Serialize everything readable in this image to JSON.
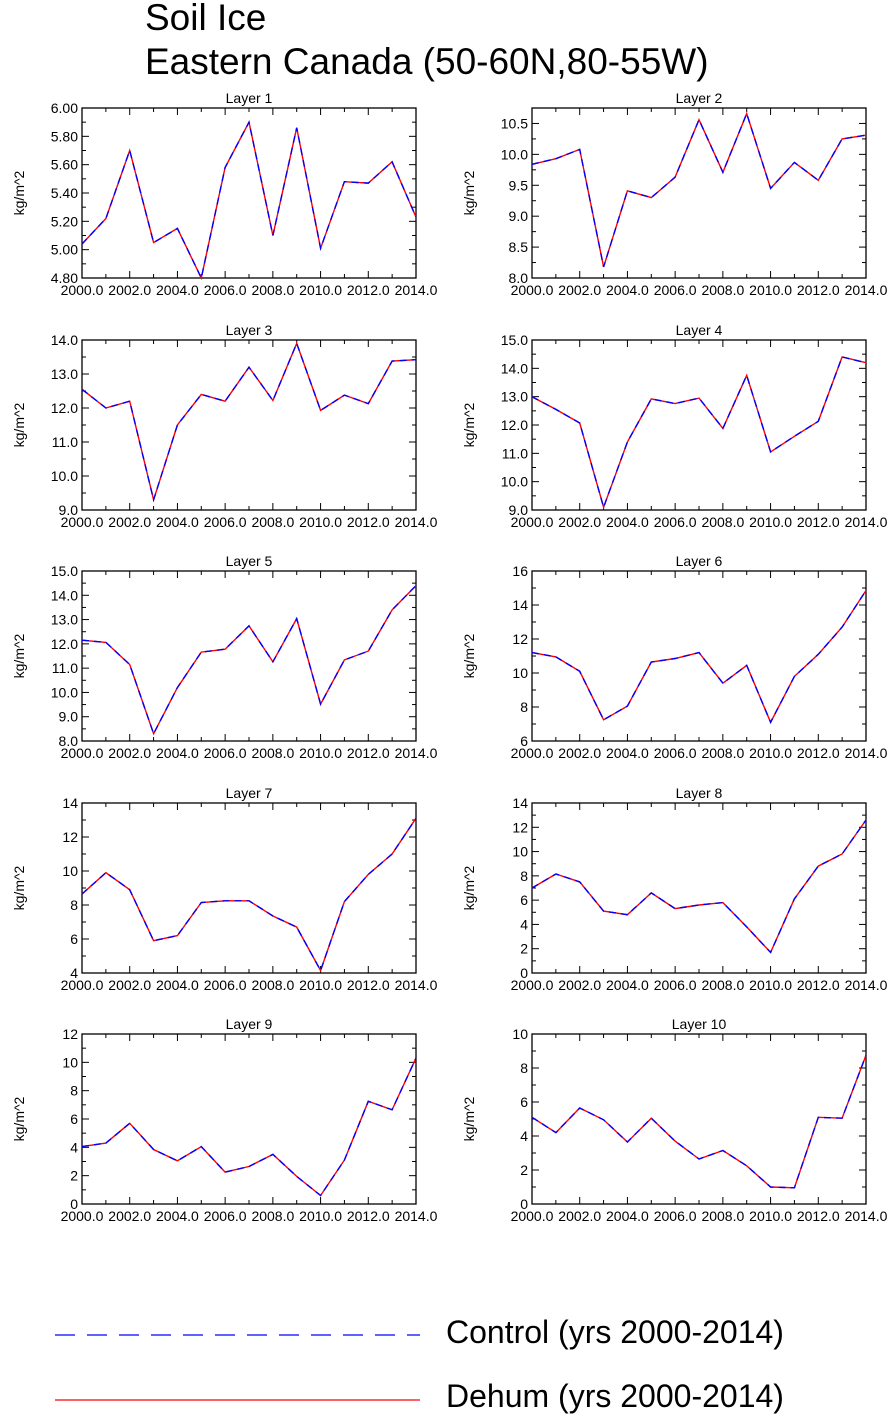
{
  "figure": {
    "title_line1": "Soil Ice",
    "title_line2": "Eastern Canada (50-60N,80-55W)"
  },
  "legend": {
    "control_label": "Control (yrs 2000-2014)",
    "dehum_label": "Dehum (yrs 2000-2014)",
    "control_color": "#0000ff",
    "dehum_color": "#ff0000"
  },
  "chart_data": [
    {
      "type": "line",
      "title": "Layer 1",
      "ylabel": "kg/m^2",
      "xlim": [
        2000,
        2014
      ],
      "ylim": [
        4.8,
        6.0
      ],
      "yticks": [
        4.8,
        5.0,
        5.2,
        5.4,
        5.6,
        5.8,
        6.0
      ],
      "ytick_labels": [
        "4.80",
        "5.00",
        "5.20",
        "5.40",
        "5.60",
        "5.80",
        "6.00"
      ],
      "xticks": [
        2000,
        2002,
        2004,
        2006,
        2008,
        2010,
        2012,
        2014
      ],
      "xtick_labels": [
        "2000.0",
        "2002.0",
        "2004.0",
        "2006.0",
        "2008.0",
        "2010.0",
        "2012.0",
        "2014.0"
      ],
      "x": [
        2000,
        2001,
        2002,
        2003,
        2004,
        2005,
        2006,
        2007,
        2008,
        2009,
        2010,
        2011,
        2012,
        2013,
        2014
      ],
      "series": [
        {
          "name": "Control (yrs 2000-2014)",
          "values": [
            5.04,
            5.22,
            5.7,
            5.05,
            5.15,
            4.8,
            5.58,
            5.9,
            5.1,
            5.86,
            5.01,
            5.48,
            5.47,
            5.62,
            5.23
          ]
        },
        {
          "name": "Dehum (yrs 2000-2014)",
          "values": [
            5.04,
            5.22,
            5.7,
            5.05,
            5.15,
            4.8,
            5.58,
            5.9,
            5.1,
            5.86,
            5.01,
            5.48,
            5.47,
            5.62,
            5.23
          ]
        }
      ]
    },
    {
      "type": "line",
      "title": "Layer 2",
      "ylabel": "kg/m^2",
      "xlim": [
        2000,
        2014
      ],
      "ylim": [
        8.0,
        10.75
      ],
      "yticks": [
        8.0,
        8.5,
        9.0,
        9.5,
        10.0,
        10.5
      ],
      "ytick_labels": [
        "8.0",
        "8.5",
        "9.0",
        "9.5",
        "10.0",
        "10.5"
      ],
      "xticks": [
        2000,
        2002,
        2004,
        2006,
        2008,
        2010,
        2012,
        2014
      ],
      "xtick_labels": [
        "2000.0",
        "2002.0",
        "2004.0",
        "2006.0",
        "2008.0",
        "2010.0",
        "2012.0",
        "2014.0"
      ],
      "x": [
        2000,
        2001,
        2002,
        2003,
        2004,
        2005,
        2006,
        2007,
        2008,
        2009,
        2010,
        2011,
        2012,
        2013,
        2014
      ],
      "series": [
        {
          "name": "Control (yrs 2000-2014)",
          "values": [
            9.84,
            9.93,
            10.08,
            8.18,
            9.41,
            9.3,
            9.63,
            10.56,
            9.71,
            10.66,
            9.45,
            9.87,
            9.58,
            10.25,
            10.31
          ]
        },
        {
          "name": "Dehum (yrs 2000-2014)",
          "values": [
            9.84,
            9.93,
            10.08,
            8.18,
            9.41,
            9.3,
            9.63,
            10.56,
            9.71,
            10.66,
            9.45,
            9.87,
            9.58,
            10.25,
            10.31
          ]
        }
      ]
    },
    {
      "type": "line",
      "title": "Layer 3",
      "ylabel": "kg/m^2",
      "xlim": [
        2000,
        2014
      ],
      "ylim": [
        9.0,
        14.0
      ],
      "yticks": [
        9,
        10,
        11,
        12,
        13,
        14
      ],
      "ytick_labels": [
        "9.0",
        "10.0",
        "11.0",
        "12.0",
        "13.0",
        "14.0"
      ],
      "xticks": [
        2000,
        2002,
        2004,
        2006,
        2008,
        2010,
        2012,
        2014
      ],
      "xtick_labels": [
        "2000.0",
        "2002.0",
        "2004.0",
        "2006.0",
        "2008.0",
        "2010.0",
        "2012.0",
        "2014.0"
      ],
      "x": [
        2000,
        2001,
        2002,
        2003,
        2004,
        2005,
        2006,
        2007,
        2008,
        2009,
        2010,
        2011,
        2012,
        2013,
        2014
      ],
      "series": [
        {
          "name": "Control (yrs 2000-2014)",
          "values": [
            12.55,
            12.0,
            12.2,
            9.3,
            11.5,
            12.4,
            12.2,
            13.2,
            12.22,
            13.9,
            11.93,
            12.38,
            12.13,
            13.38,
            13.42
          ]
        },
        {
          "name": "Dehum (yrs 2000-2014)",
          "values": [
            12.55,
            12.0,
            12.2,
            9.3,
            11.5,
            12.4,
            12.2,
            13.2,
            12.22,
            13.9,
            11.93,
            12.38,
            12.13,
            13.38,
            13.42
          ]
        }
      ]
    },
    {
      "type": "line",
      "title": "Layer 4",
      "ylabel": "kg/m^2",
      "xlim": [
        2000,
        2014
      ],
      "ylim": [
        9.0,
        15.0
      ],
      "yticks": [
        9,
        10,
        11,
        12,
        13,
        14,
        15
      ],
      "ytick_labels": [
        "9.0",
        "10.0",
        "11.0",
        "12.0",
        "13.0",
        "14.0",
        "15.0"
      ],
      "xticks": [
        2000,
        2002,
        2004,
        2006,
        2008,
        2010,
        2012,
        2014
      ],
      "xtick_labels": [
        "2000.0",
        "2002.0",
        "2004.0",
        "2006.0",
        "2008.0",
        "2010.0",
        "2012.0",
        "2014.0"
      ],
      "x": [
        2000,
        2001,
        2002,
        2003,
        2004,
        2005,
        2006,
        2007,
        2008,
        2009,
        2010,
        2011,
        2012,
        2013,
        2014
      ],
      "series": [
        {
          "name": "Control (yrs 2000-2014)",
          "values": [
            13.0,
            12.55,
            12.07,
            9.1,
            11.4,
            12.92,
            12.76,
            12.95,
            11.88,
            13.75,
            11.05,
            11.6,
            12.13,
            14.4,
            14.2
          ]
        },
        {
          "name": "Dehum (yrs 2000-2014)",
          "values": [
            13.0,
            12.55,
            12.07,
            9.1,
            11.4,
            12.92,
            12.76,
            12.95,
            11.88,
            13.75,
            11.05,
            11.6,
            12.13,
            14.4,
            14.2
          ]
        }
      ]
    },
    {
      "type": "line",
      "title": "Layer 5",
      "ylabel": "kg/m^2",
      "xlim": [
        2000,
        2014
      ],
      "ylim": [
        8.0,
        15.0
      ],
      "yticks": [
        8,
        9,
        10,
        11,
        12,
        13,
        14,
        15
      ],
      "ytick_labels": [
        "8.0",
        "9.0",
        "10.0",
        "11.0",
        "12.0",
        "13.0",
        "14.0",
        "15.0"
      ],
      "xticks": [
        2000,
        2002,
        2004,
        2006,
        2008,
        2010,
        2012,
        2014
      ],
      "xtick_labels": [
        "2000.0",
        "2002.0",
        "2004.0",
        "2006.0",
        "2008.0",
        "2010.0",
        "2012.0",
        "2014.0"
      ],
      "x": [
        2000,
        2001,
        2002,
        2003,
        2004,
        2005,
        2006,
        2007,
        2008,
        2009,
        2010,
        2011,
        2012,
        2013,
        2014
      ],
      "series": [
        {
          "name": "Control (yrs 2000-2014)",
          "values": [
            12.15,
            12.06,
            11.15,
            8.3,
            10.2,
            11.66,
            11.78,
            12.74,
            11.26,
            13.04,
            9.52,
            11.34,
            11.7,
            13.4,
            14.4
          ]
        },
        {
          "name": "Dehum (yrs 2000-2014)",
          "values": [
            12.15,
            12.06,
            11.15,
            8.3,
            10.2,
            11.66,
            11.78,
            12.74,
            11.26,
            13.04,
            9.52,
            11.34,
            11.7,
            13.4,
            14.4
          ]
        }
      ]
    },
    {
      "type": "line",
      "title": "Layer 6",
      "ylabel": "kg/m^2",
      "xlim": [
        2000,
        2014
      ],
      "ylim": [
        6,
        16
      ],
      "yticks": [
        6,
        8,
        10,
        12,
        14,
        16
      ],
      "ytick_labels": [
        "6",
        "8",
        "10",
        "12",
        "14",
        "16"
      ],
      "xticks": [
        2000,
        2002,
        2004,
        2006,
        2008,
        2010,
        2012,
        2014
      ],
      "xtick_labels": [
        "2000.0",
        "2002.0",
        "2004.0",
        "2006.0",
        "2008.0",
        "2010.0",
        "2012.0",
        "2014.0"
      ],
      "x": [
        2000,
        2001,
        2002,
        2003,
        2004,
        2005,
        2006,
        2007,
        2008,
        2009,
        2010,
        2011,
        2012,
        2013,
        2014
      ],
      "series": [
        {
          "name": "Control (yrs 2000-2014)",
          "values": [
            11.2,
            10.95,
            10.1,
            7.25,
            8.05,
            10.65,
            10.85,
            11.2,
            9.4,
            10.45,
            7.1,
            9.8,
            11.1,
            12.7,
            14.85
          ]
        },
        {
          "name": "Dehum (yrs 2000-2014)",
          "values": [
            11.2,
            10.95,
            10.1,
            7.25,
            8.05,
            10.65,
            10.85,
            11.2,
            9.4,
            10.45,
            7.1,
            9.8,
            11.1,
            12.7,
            14.85
          ]
        }
      ]
    },
    {
      "type": "line",
      "title": "Layer 7",
      "ylabel": "kg/m^2",
      "xlim": [
        2000,
        2014
      ],
      "ylim": [
        4,
        14
      ],
      "yticks": [
        4,
        6,
        8,
        10,
        12,
        14
      ],
      "ytick_labels": [
        "4",
        "6",
        "8",
        "10",
        "12",
        "14"
      ],
      "xticks": [
        2000,
        2002,
        2004,
        2006,
        2008,
        2010,
        2012,
        2014
      ],
      "xtick_labels": [
        "2000.0",
        "2002.0",
        "2004.0",
        "2006.0",
        "2008.0",
        "2010.0",
        "2012.0",
        "2014.0"
      ],
      "x": [
        2000,
        2001,
        2002,
        2003,
        2004,
        2005,
        2006,
        2007,
        2008,
        2009,
        2010,
        2011,
        2012,
        2013,
        2014
      ],
      "series": [
        {
          "name": "Control (yrs 2000-2014)",
          "values": [
            8.65,
            9.9,
            8.9,
            5.9,
            6.2,
            8.15,
            8.25,
            8.25,
            7.35,
            6.7,
            4.15,
            8.2,
            9.8,
            11.0,
            13.1
          ]
        },
        {
          "name": "Dehum (yrs 2000-2014)",
          "values": [
            8.65,
            9.9,
            8.9,
            5.9,
            6.2,
            8.15,
            8.25,
            8.25,
            7.35,
            6.7,
            4.15,
            8.2,
            9.8,
            11.0,
            13.1
          ]
        }
      ]
    },
    {
      "type": "line",
      "title": "Layer 8",
      "ylabel": "kg/m^2",
      "xlim": [
        2000,
        2014
      ],
      "ylim": [
        0,
        14
      ],
      "yticks": [
        0,
        2,
        4,
        6,
        8,
        10,
        12,
        14
      ],
      "ytick_labels": [
        "0",
        "2",
        "4",
        "6",
        "8",
        "10",
        "12",
        "14"
      ],
      "xticks": [
        2000,
        2002,
        2004,
        2006,
        2008,
        2010,
        2012,
        2014
      ],
      "xtick_labels": [
        "2000.0",
        "2002.0",
        "2004.0",
        "2006.0",
        "2008.0",
        "2010.0",
        "2012.0",
        "2014.0"
      ],
      "x": [
        2000,
        2001,
        2002,
        2003,
        2004,
        2005,
        2006,
        2007,
        2008,
        2009,
        2010,
        2011,
        2012,
        2013,
        2014
      ],
      "series": [
        {
          "name": "Control (yrs 2000-2014)",
          "values": [
            7.0,
            8.15,
            7.5,
            5.1,
            4.8,
            6.6,
            5.3,
            5.6,
            5.8,
            3.8,
            1.7,
            6.1,
            8.8,
            9.8,
            12.6
          ]
        },
        {
          "name": "Dehum (yrs 2000-2014)",
          "values": [
            7.0,
            8.15,
            7.5,
            5.1,
            4.8,
            6.6,
            5.3,
            5.6,
            5.8,
            3.8,
            1.7,
            6.1,
            8.8,
            9.8,
            12.6
          ]
        }
      ]
    },
    {
      "type": "line",
      "title": "Layer 9",
      "ylabel": "kg/m^2",
      "xlim": [
        2000,
        2014
      ],
      "ylim": [
        0,
        12
      ],
      "yticks": [
        0,
        2,
        4,
        6,
        8,
        10,
        12
      ],
      "ytick_labels": [
        "0",
        "2",
        "4",
        "6",
        "8",
        "10",
        "12"
      ],
      "xticks": [
        2000,
        2002,
        2004,
        2006,
        2008,
        2010,
        2012,
        2014
      ],
      "xtick_labels": [
        "2000.0",
        "2002.0",
        "2004.0",
        "2006.0",
        "2008.0",
        "2010.0",
        "2012.0",
        "2014.0"
      ],
      "x": [
        2000,
        2001,
        2002,
        2003,
        2004,
        2005,
        2006,
        2007,
        2008,
        2009,
        2010,
        2011,
        2012,
        2013,
        2014
      ],
      "series": [
        {
          "name": "Control (yrs 2000-2014)",
          "values": [
            4.05,
            4.3,
            5.7,
            3.85,
            3.05,
            4.05,
            2.25,
            2.65,
            3.5,
            1.95,
            0.6,
            3.1,
            7.25,
            6.65,
            10.3
          ]
        },
        {
          "name": "Dehum (yrs 2000-2014)",
          "values": [
            4.05,
            4.3,
            5.7,
            3.85,
            3.05,
            4.05,
            2.25,
            2.65,
            3.5,
            1.95,
            0.6,
            3.1,
            7.25,
            6.65,
            10.3
          ]
        }
      ]
    },
    {
      "type": "line",
      "title": "Layer 10",
      "ylabel": "kg/m^2",
      "xlim": [
        2000,
        2014
      ],
      "ylim": [
        0,
        10
      ],
      "yticks": [
        0,
        2,
        4,
        6,
        8,
        10
      ],
      "ytick_labels": [
        "0",
        "2",
        "4",
        "6",
        "8",
        "10"
      ],
      "xticks": [
        2000,
        2002,
        2004,
        2006,
        2008,
        2010,
        2012,
        2014
      ],
      "xtick_labels": [
        "2000.0",
        "2002.0",
        "2004.0",
        "2006.0",
        "2008.0",
        "2010.0",
        "2012.0",
        "2014.0"
      ],
      "x": [
        2000,
        2001,
        2002,
        2003,
        2004,
        2005,
        2006,
        2007,
        2008,
        2009,
        2010,
        2011,
        2012,
        2013,
        2014
      ],
      "series": [
        {
          "name": "Control (yrs 2000-2014)",
          "values": [
            5.1,
            4.2,
            5.65,
            4.95,
            3.65,
            5.05,
            3.7,
            2.65,
            3.15,
            2.25,
            1.0,
            0.95,
            5.1,
            5.05,
            8.75
          ]
        },
        {
          "name": "Dehum (yrs 2000-2014)",
          "values": [
            5.1,
            4.2,
            5.65,
            4.95,
            3.65,
            5.05,
            3.7,
            2.65,
            3.15,
            2.25,
            1.0,
            0.95,
            5.1,
            5.05,
            8.75
          ]
        }
      ]
    }
  ]
}
